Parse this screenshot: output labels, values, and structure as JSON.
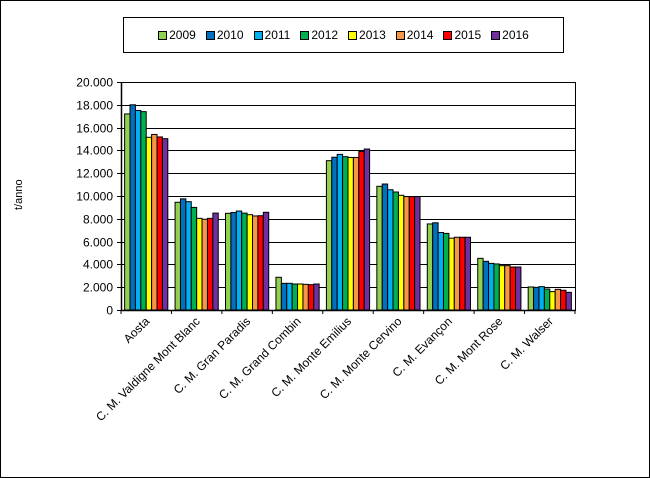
{
  "chart_data": {
    "type": "bar",
    "title": "",
    "xlabel": "",
    "ylabel": "t/anno",
    "ylim": [
      0,
      20000
    ],
    "yticks": [
      0,
      2000,
      4000,
      6000,
      8000,
      10000,
      12000,
      14000,
      16000,
      18000,
      20000
    ],
    "ytick_labels": [
      "0",
      "2.000",
      "4.000",
      "6.000",
      "8.000",
      "10.000",
      "12.000",
      "14.000",
      "16.000",
      "18.000",
      "20.000"
    ],
    "grid": true,
    "legend_position": "top",
    "categories": [
      "Aosta",
      "C. M. Valdigne Mont Blanc",
      "C. M. Gran Paradis",
      "C. M. Grand Combin",
      "C. M. Monte Emilius",
      "C. M. Monte Cervino",
      "C. M. Evançon",
      "C. M. Mont Rose",
      "C. M. Walser"
    ],
    "series": [
      {
        "name": "2009",
        "color": "#92D050",
        "values": [
          17200,
          9450,
          8480,
          2870,
          13100,
          10850,
          7550,
          4530,
          2020
        ]
      },
      {
        "name": "2010",
        "color": "#0070C0",
        "values": [
          18000,
          9750,
          8550,
          2340,
          13400,
          11050,
          7650,
          4270,
          1990
        ]
      },
      {
        "name": "2011",
        "color": "#00B0F0",
        "values": [
          17500,
          9500,
          8680,
          2340,
          13650,
          10550,
          6800,
          4090,
          2050
        ]
      },
      {
        "name": "2012",
        "color": "#00B050",
        "values": [
          17400,
          9000,
          8500,
          2280,
          13450,
          10350,
          6720,
          4040,
          1840
        ]
      },
      {
        "name": "2013",
        "color": "#FFFF00",
        "values": [
          15150,
          8040,
          8360,
          2280,
          13380,
          10060,
          6300,
          3890,
          1610
        ]
      },
      {
        "name": "2014",
        "color": "#F79646",
        "values": [
          15400,
          7960,
          8250,
          2250,
          13380,
          9950,
          6380,
          3890,
          1810
        ]
      },
      {
        "name": "2015",
        "color": "#FF0000",
        "values": [
          15180,
          8040,
          8270,
          2220,
          13900,
          9950,
          6380,
          3770,
          1730
        ]
      },
      {
        "name": "2016",
        "color": "#7030A0",
        "values": [
          15030,
          8500,
          8570,
          2280,
          14120,
          9950,
          6380,
          3770,
          1550
        ]
      }
    ]
  },
  "legend": {
    "items": [
      {
        "label": "2009",
        "color": "#92D050"
      },
      {
        "label": "2010",
        "color": "#0070C0"
      },
      {
        "label": "2011",
        "color": "#00B0F0"
      },
      {
        "label": "2012",
        "color": "#00B050"
      },
      {
        "label": "2013",
        "color": "#FFFF00"
      },
      {
        "label": "2014",
        "color": "#F79646"
      },
      {
        "label": "2015",
        "color": "#FF0000"
      },
      {
        "label": "2016",
        "color": "#7030A0"
      }
    ]
  },
  "axis": {
    "ylabel": "t/anno"
  }
}
